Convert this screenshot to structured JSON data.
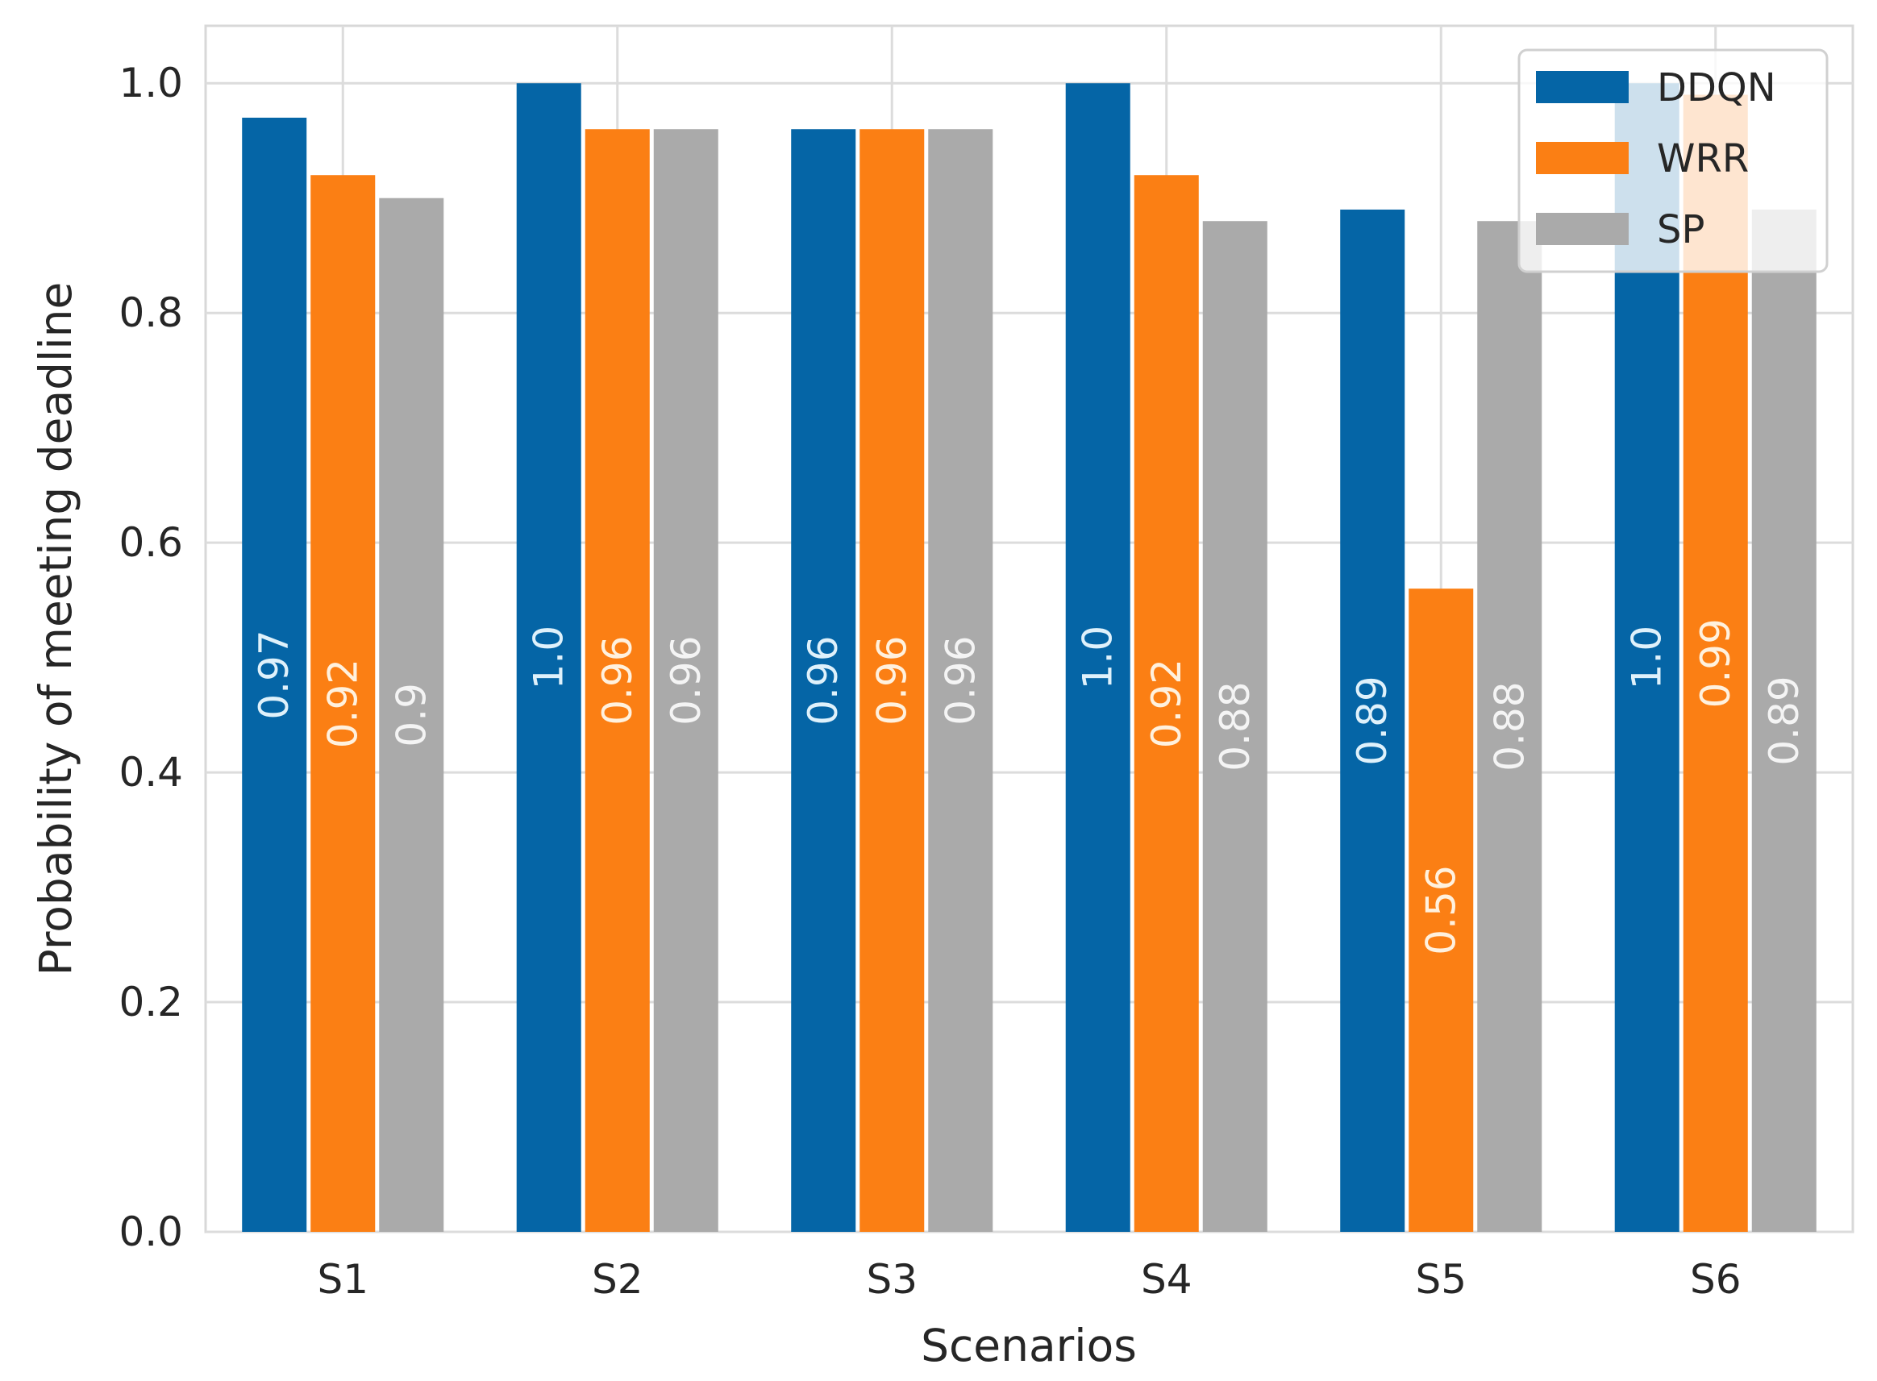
{
  "chart_data": {
    "type": "bar",
    "title": "",
    "xlabel": "Scenarios",
    "ylabel": "Probability of meeting deadline",
    "categories": [
      "S1",
      "S2",
      "S3",
      "S4",
      "S5",
      "S6"
    ],
    "ylim": [
      0,
      1.05
    ],
    "yticks": [
      0.0,
      0.2,
      0.4,
      0.6,
      0.8,
      1.0
    ],
    "ytick_labels": [
      "0.0",
      "0.2",
      "0.4",
      "0.6",
      "0.8",
      "1.0"
    ],
    "grid": true,
    "legend_position": "top-right",
    "series": [
      {
        "name": "DDQN",
        "color": "#0565a6",
        "label_color": "#dff1fb",
        "values": [
          0.97,
          1.0,
          0.96,
          1.0,
          0.89,
          1.0
        ],
        "labels": [
          "0.97",
          "1.0",
          "0.96",
          "1.0",
          "0.89",
          "1.0"
        ]
      },
      {
        "name": "WRR",
        "color": "#fb7f14",
        "label_color": "#fff1de",
        "values": [
          0.92,
          0.96,
          0.96,
          0.92,
          0.56,
          0.99
        ],
        "labels": [
          "0.92",
          "0.96",
          "0.96",
          "0.92",
          "0.56",
          "0.99"
        ]
      },
      {
        "name": "SP",
        "color": "#aaaaaa",
        "label_color": "#f4f4f4",
        "values": [
          0.9,
          0.96,
          0.96,
          0.88,
          0.88,
          0.89
        ],
        "labels": [
          "0.9",
          "0.96",
          "0.96",
          "0.88",
          "0.88",
          "0.89"
        ]
      }
    ]
  }
}
